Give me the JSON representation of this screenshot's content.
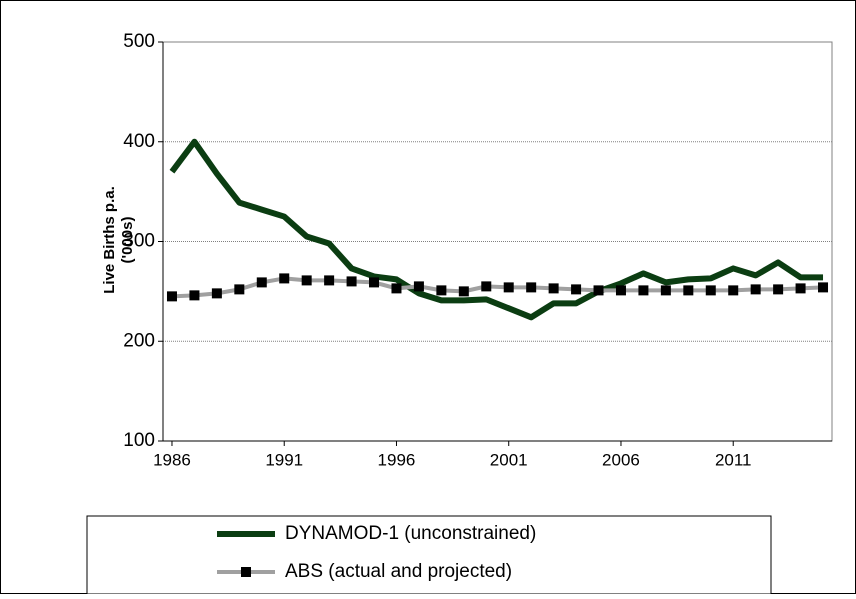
{
  "chart_data": {
    "type": "line",
    "y_label_lines": [
      "Live Births p.a.",
      "('000s)"
    ],
    "x": [
      1986,
      1987,
      1988,
      1989,
      1990,
      1991,
      1992,
      1993,
      1994,
      1995,
      1996,
      1997,
      1998,
      1999,
      2000,
      2001,
      2002,
      2003,
      2004,
      2005,
      2006,
      2007,
      2008,
      2009,
      2010,
      2011,
      2012,
      2013,
      2014,
      2015
    ],
    "series": [
      {
        "name": "DYNAMOD-1 (unconstrained)",
        "color": "#0b3d12",
        "marker": false,
        "values": [
          370,
          400,
          368,
          339,
          332,
          325,
          305,
          298,
          273,
          265,
          262,
          248,
          241,
          241,
          242,
          233,
          224,
          238,
          238,
          250,
          258,
          268,
          259,
          262,
          263,
          273,
          266,
          279,
          264,
          264
        ]
      },
      {
        "name": "ABS (actual and projected)",
        "color": "#a0a0a0",
        "marker": true,
        "values": [
          245,
          246,
          248,
          252,
          259,
          263,
          261,
          261,
          260,
          259,
          253,
          255,
          251,
          250,
          255,
          254,
          254,
          253,
          252,
          251,
          251,
          251,
          251,
          251,
          251,
          251,
          252,
          252,
          253,
          254
        ]
      }
    ],
    "xlim": [
      1985.6,
      2015.4
    ],
    "xticks": [
      1986,
      1991,
      1996,
      2001,
      2006,
      2011
    ],
    "ylim": [
      100,
      500
    ],
    "yticks": [
      100,
      200,
      300,
      400,
      500
    ],
    "grid": true
  }
}
